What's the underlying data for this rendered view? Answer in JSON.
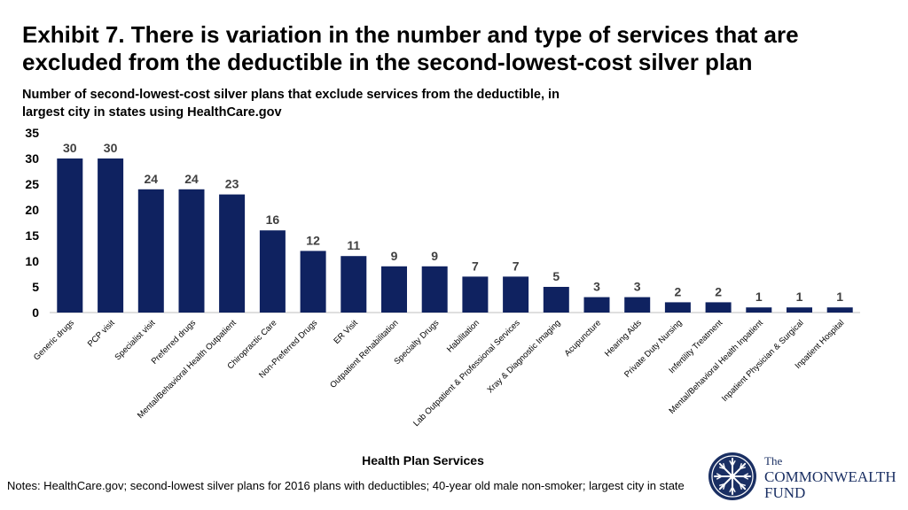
{
  "title": "Exhibit 7. There is variation in the number and type of services that are excluded from the deductible in the second-lowest-cost silver plan",
  "notes": "Notes: HealthCare.gov; second-lowest silver plans for 2016 plans with deductibles; 40-year old male non-smoker; largest city in state",
  "logo": {
    "line1": "The",
    "line2": "COMMONWEALTH",
    "line3": "FUND"
  },
  "colors": {
    "bar": "#0f2260",
    "axis": "#bfbfbf",
    "text": "#404040"
  },
  "chart_data": {
    "type": "bar",
    "title": "Number of second-lowest-cost silver plans that exclude services from the deductible, in largest city in states using HealthCare.gov",
    "xlabel": "Health Plan Services",
    "ylabel": "",
    "ylim": [
      0,
      35
    ],
    "yticks": [
      0,
      5,
      10,
      15,
      20,
      25,
      30,
      35
    ],
    "grid": false,
    "categories": [
      "Generic drugs",
      "PCP visit",
      "Specialist visit",
      "Preferred drugs",
      "Mental/Behavioral Health Outpatient",
      "Chiropractic Care",
      "Non-Preferred Drugs",
      "ER Visit",
      "Outpatient Rehabilitation",
      "Specialty Drugs",
      "Habilitation",
      "Lab Outpatient & Professional Services",
      "Xray & Diagnostic Imaging",
      "Acupuncture",
      "Hearing Aids",
      "Private Duty Nursing",
      "Infertility Treatment",
      "Mental/Behavioral Health Inpatient",
      "Inpatient Physician & Surgical",
      "Inpatient Hospital"
    ],
    "values": [
      30,
      30,
      24,
      24,
      23,
      16,
      12,
      11,
      9,
      9,
      7,
      7,
      5,
      3,
      3,
      2,
      2,
      1,
      1,
      1
    ]
  }
}
